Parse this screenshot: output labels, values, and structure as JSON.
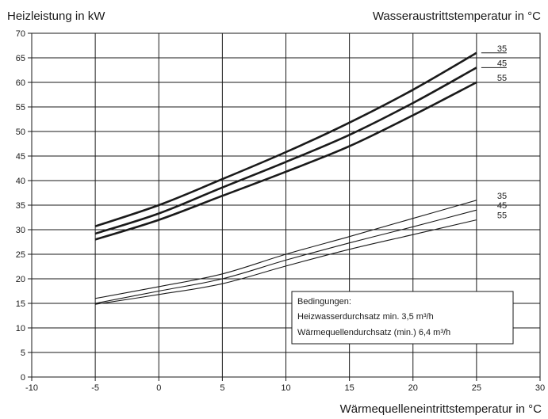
{
  "chart_data": {
    "type": "line",
    "ylabel": "Heizleistung in kW",
    "xlabel": "Wärmequelleneintrittstemperatur in °C",
    "legend_title": "Wasseraustrittstemperatur in °C",
    "xlim": [
      -10,
      30
    ],
    "ylim": [
      0,
      70
    ],
    "x_ticks": [
      -10,
      -5,
      0,
      5,
      10,
      15,
      20,
      25,
      30
    ],
    "y_ticks": [
      0,
      5,
      10,
      15,
      20,
      25,
      30,
      35,
      40,
      45,
      50,
      55,
      60,
      65,
      70
    ],
    "grid": true,
    "series": [
      {
        "name": "35",
        "group": "upper",
        "x": [
          -5,
          0,
          5,
          10,
          15,
          20,
          25
        ],
        "y": [
          30.7,
          35,
          40.3,
          45.8,
          51.8,
          58.5,
          66
        ]
      },
      {
        "name": "45",
        "group": "upper",
        "x": [
          -5,
          0,
          5,
          10,
          15,
          20,
          25
        ],
        "y": [
          29.2,
          33.3,
          38.6,
          43.8,
          49.3,
          55.8,
          63
        ]
      },
      {
        "name": "55",
        "group": "upper",
        "x": [
          -5,
          0,
          5,
          10,
          15,
          20,
          25
        ],
        "y": [
          28,
          32,
          36.9,
          41.8,
          47,
          53.3,
          60
        ]
      },
      {
        "name": "35",
        "group": "lower",
        "x": [
          -5,
          0,
          5,
          10,
          15,
          20,
          25
        ],
        "y": [
          16,
          18.4,
          21,
          25,
          28.6,
          32.3,
          36
        ]
      },
      {
        "name": "45",
        "group": "lower",
        "x": [
          -5,
          0,
          5,
          10,
          15,
          20,
          25
        ],
        "y": [
          15,
          17.5,
          20,
          23.8,
          27.3,
          30.6,
          34
        ]
      },
      {
        "name": "55",
        "group": "lower",
        "x": [
          -5,
          0,
          5,
          10,
          15,
          20,
          25
        ],
        "y": [
          14.8,
          16.8,
          19,
          22.6,
          26,
          29,
          32
        ]
      }
    ],
    "annotation": {
      "lines": [
        "Bedingungen:",
        "Heizwasserdurchsatz min. 3,5 m³/h",
        "Wärmequellendurchsatz (min.) 6,4 m³/h"
      ]
    }
  },
  "colors": {
    "line": "#1a1a1a",
    "grid": "#1a1a1a",
    "background": "#ffffff"
  }
}
